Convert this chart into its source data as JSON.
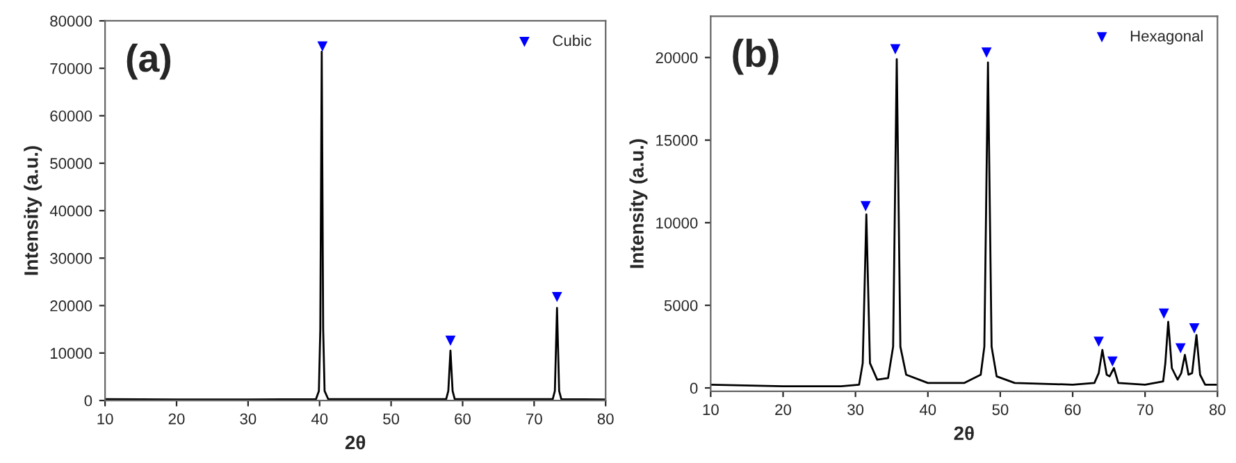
{
  "chart_data": [
    {
      "type": "line",
      "xlabel": "2θ",
      "ylabel": "Intensity (a.u.)",
      "annotations": [
        "(a)"
      ],
      "xlim": [
        10,
        80
      ],
      "ylim": [
        0,
        80000
      ],
      "xticks": [
        10,
        20,
        30,
        40,
        50,
        60,
        70,
        80
      ],
      "yticks": [
        0,
        10000,
        20000,
        30000,
        40000,
        50000,
        60000,
        70000,
        80000
      ],
      "legend": "top right",
      "series": [
        {
          "color": "#000000",
          "marker": "none",
          "x": [
            10,
            20,
            30,
            39.5,
            39.9,
            40.1,
            40.3,
            40.5,
            40.7,
            41.2,
            57.7,
            58.0,
            58.3,
            58.6,
            58.9,
            72.6,
            72.9,
            73.2,
            73.5,
            73.8,
            80
          ],
          "values": [
            300,
            200,
            200,
            300,
            2000,
            15000,
            73500,
            15000,
            2000,
            300,
            300,
            2000,
            10500,
            2000,
            300,
            300,
            2000,
            19500,
            2000,
            300,
            200
          ]
        },
        {
          "type": "scatter",
          "marker": "triangle",
          "name": "Cubic",
          "color": "#0000ff",
          "x": [
            40.4,
            58.3,
            73.2
          ],
          "values": [
            74600,
            12600,
            21800
          ]
        }
      ]
    },
    {
      "type": "line",
      "xlabel": "2θ",
      "ylabel": "Intensity (a.u.)",
      "annotations": [
        "(b)"
      ],
      "xlim": [
        10,
        80
      ],
      "ylim": [
        -200,
        22500
      ],
      "xticks": [
        10,
        20,
        30,
        40,
        50,
        60,
        70,
        80
      ],
      "yticks": [
        0,
        5000,
        10000,
        15000,
        20000
      ],
      "legend": "top right",
      "series": [
        {
          "color": "#000000",
          "marker": "none",
          "x": [
            10,
            20,
            28,
            30.5,
            31,
            31.5,
            32,
            33,
            34.5,
            35.2,
            35.7,
            36.2,
            37,
            40,
            45,
            47.3,
            47.8,
            48.3,
            48.8,
            49.5,
            52,
            60,
            63,
            63.6,
            64.1,
            64.7,
            65.1,
            65.7,
            66.3,
            70,
            72.5,
            72.8,
            73.2,
            73.7,
            74.5,
            75.0,
            75.5,
            76.0,
            76.5,
            77.1,
            77.6,
            78.3,
            80
          ],
          "values": [
            200,
            100,
            100,
            200,
            1500,
            10500,
            1500,
            500,
            600,
            2500,
            19900,
            2500,
            800,
            300,
            300,
            800,
            2500,
            19700,
            2500,
            700,
            300,
            200,
            300,
            900,
            2300,
            800,
            700,
            1200,
            300,
            200,
            400,
            1500,
            4000,
            1200,
            500,
            900,
            2000,
            800,
            900,
            3200,
            800,
            200,
            200
          ]
        },
        {
          "type": "scatter",
          "marker": "triangle",
          "name": "Hexagonal",
          "color": "#0000ff",
          "x": [
            31.4,
            35.5,
            48.1,
            63.6,
            65.5,
            72.6,
            74.9,
            76.8
          ],
          "values": [
            11000,
            20500,
            20300,
            2800,
            1600,
            4500,
            2400,
            3600
          ]
        }
      ]
    }
  ]
}
